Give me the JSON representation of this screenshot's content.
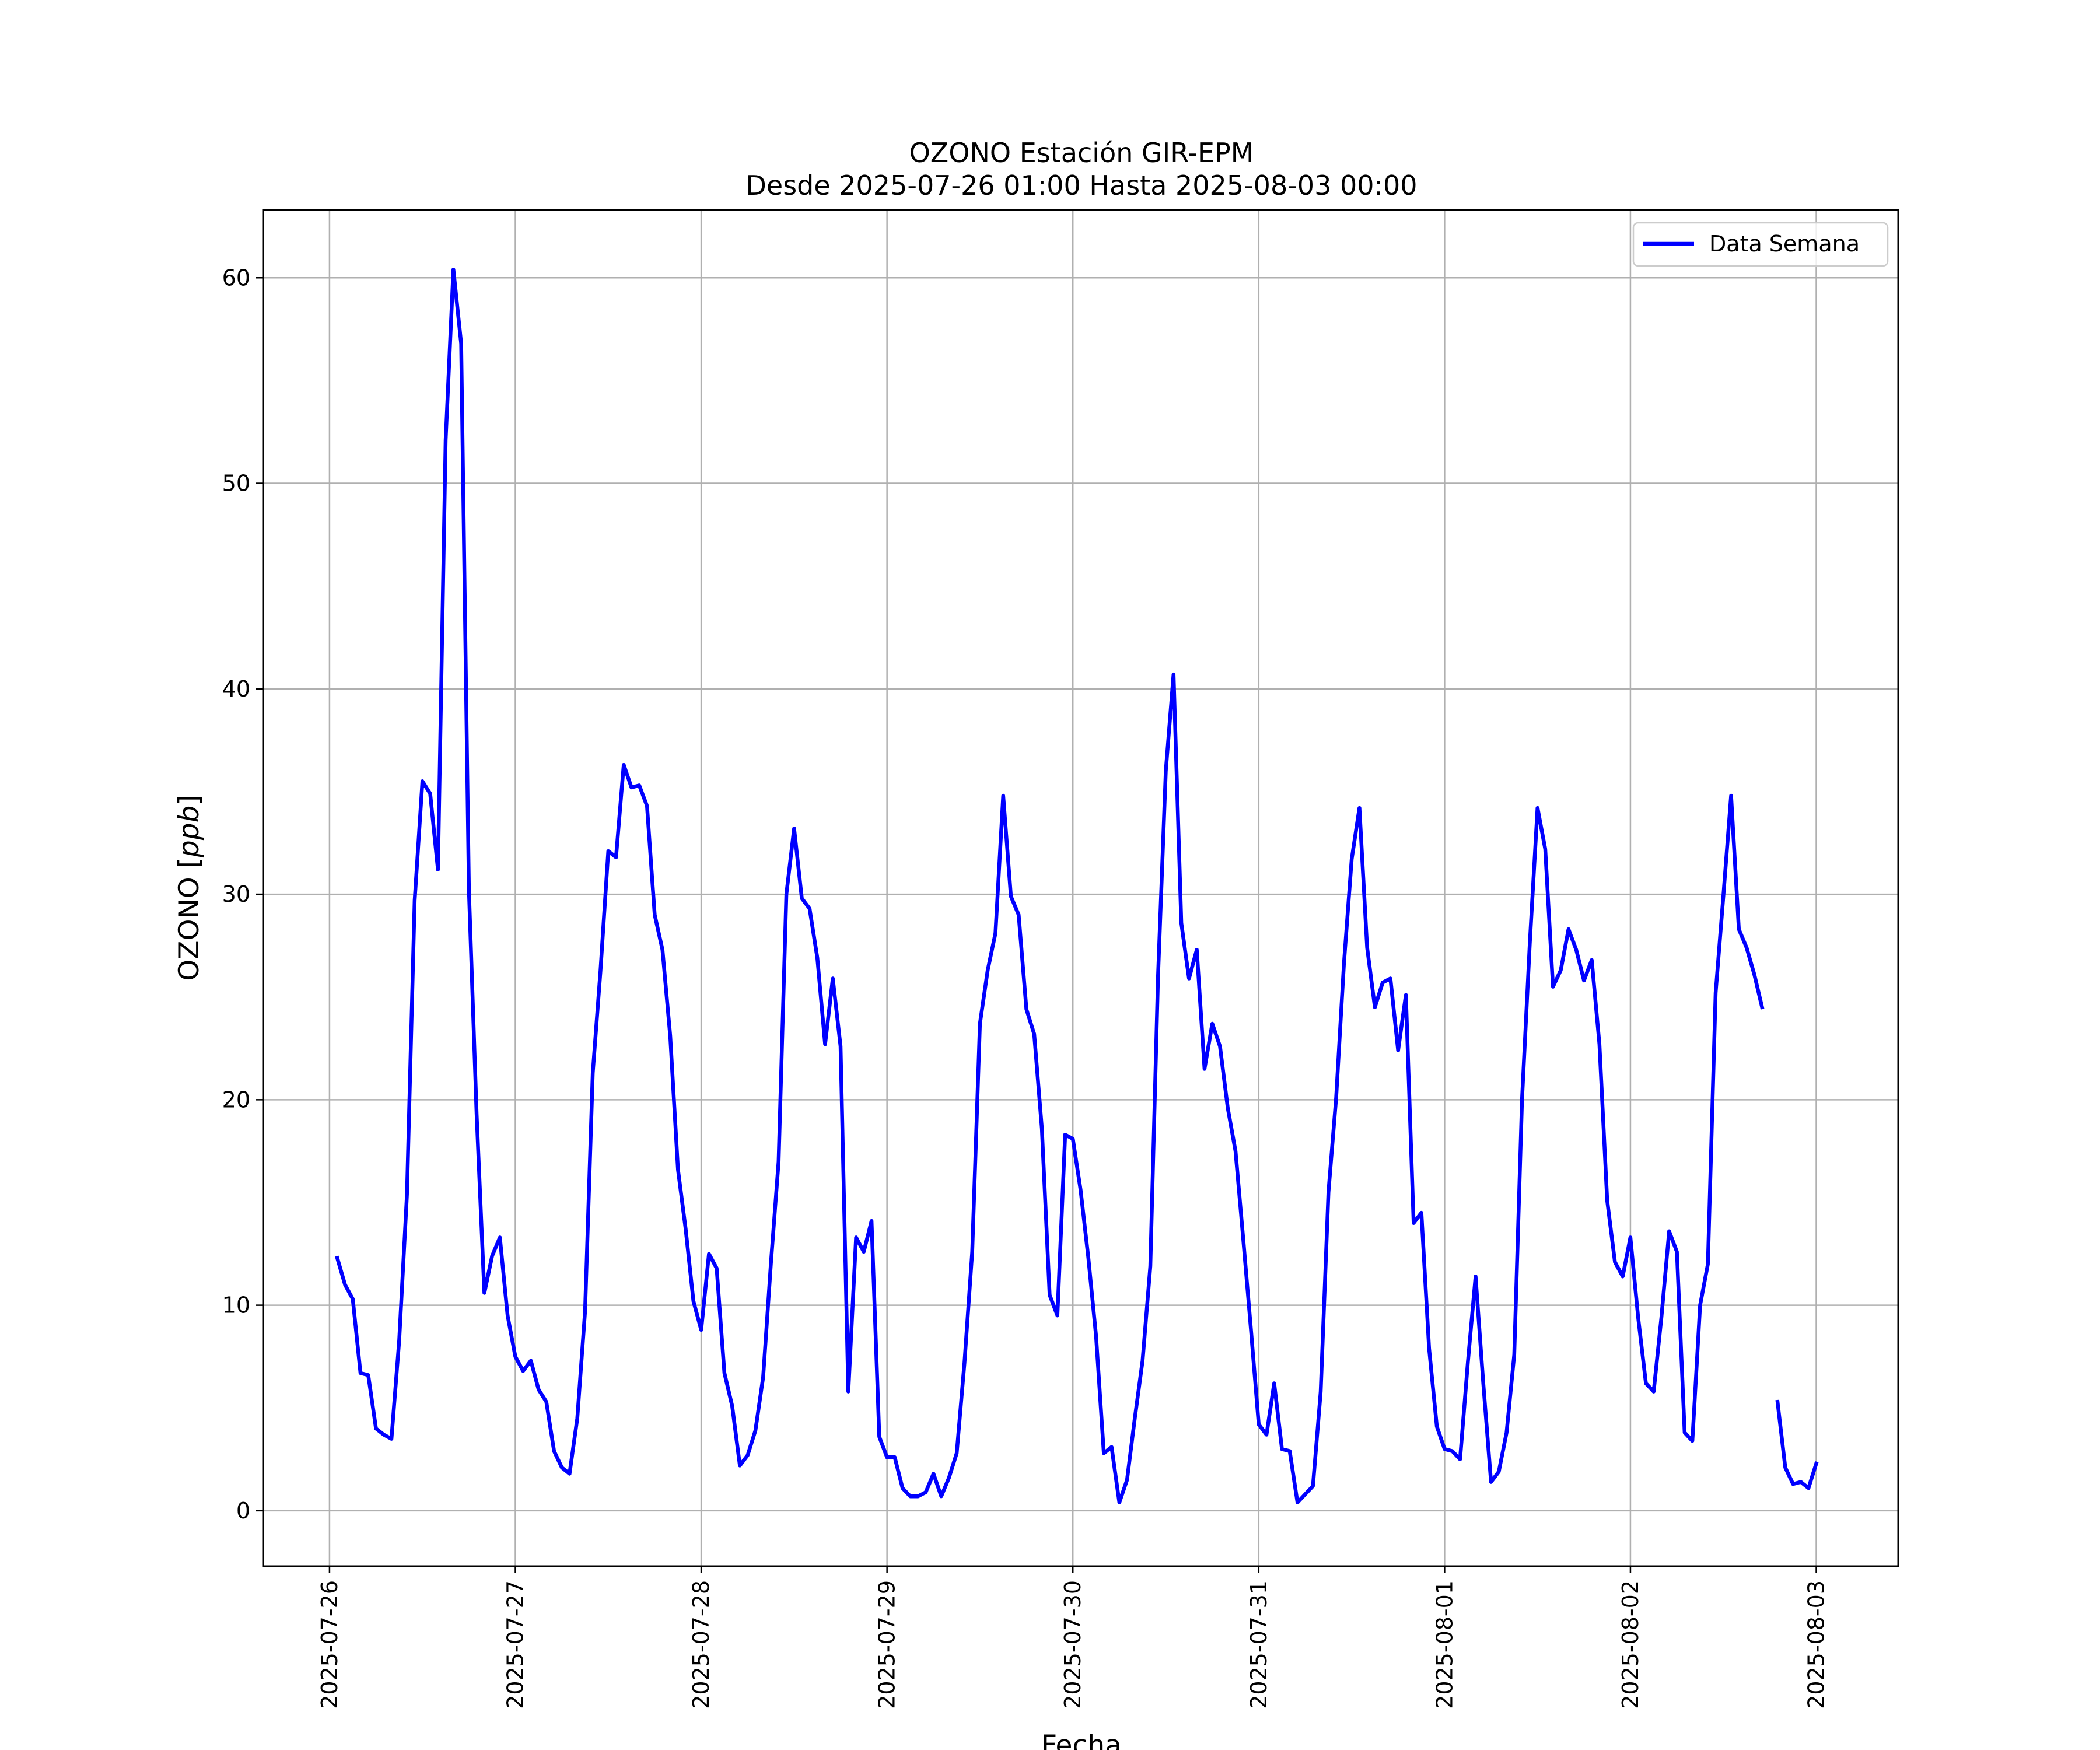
{
  "chart_data": {
    "type": "line",
    "title": "OZONO Estación GIR-EPM",
    "subtitle": "Desde 2025-07-26 01:00 Hasta 2025-08-03 00:00",
    "xlabel": "Fecha",
    "ylabel": "OZONO [ppb]",
    "ylabel_parts": {
      "prefix": "OZONO [",
      "unit": "ppb",
      "suffix": "]"
    },
    "xlim": [
      "2025-07-25 15:25",
      "2025-08-03 10:35"
    ],
    "ylim": [
      -2.7,
      63.3
    ],
    "x_ticks": [
      "2025-07-26",
      "2025-07-27",
      "2025-07-28",
      "2025-07-29",
      "2025-07-30",
      "2025-07-31",
      "2025-08-01",
      "2025-08-02",
      "2025-08-03"
    ],
    "y_ticks": [
      0,
      10,
      20,
      30,
      40,
      50,
      60
    ],
    "grid": true,
    "legend_position": "top-right",
    "line_color": "#0000ff",
    "series": [
      {
        "name": "Data Semana",
        "x": [
          "2025-07-26 01:00",
          "2025-07-26 02:00",
          "2025-07-26 03:00",
          "2025-07-26 04:00",
          "2025-07-26 05:00",
          "2025-07-26 06:00",
          "2025-07-26 07:00",
          "2025-07-26 08:00",
          "2025-07-26 09:00",
          "2025-07-26 10:00",
          "2025-07-26 11:00",
          "2025-07-26 12:00",
          "2025-07-26 13:00",
          "2025-07-26 14:00",
          "2025-07-26 15:00",
          "2025-07-26 16:00",
          "2025-07-26 17:00",
          "2025-07-26 18:00",
          "2025-07-26 19:00",
          "2025-07-26 20:00",
          "2025-07-26 21:00",
          "2025-07-26 22:00",
          "2025-07-26 23:00",
          "2025-07-27 00:00",
          "2025-07-27 01:00",
          "2025-07-27 02:00",
          "2025-07-27 03:00",
          "2025-07-27 04:00",
          "2025-07-27 05:00",
          "2025-07-27 06:00",
          "2025-07-27 07:00",
          "2025-07-27 08:00",
          "2025-07-27 09:00",
          "2025-07-27 10:00",
          "2025-07-27 11:00",
          "2025-07-27 12:00",
          "2025-07-27 13:00",
          "2025-07-27 14:00",
          "2025-07-27 15:00",
          "2025-07-27 16:00",
          "2025-07-27 17:00",
          "2025-07-27 18:00",
          "2025-07-27 19:00",
          "2025-07-27 20:00",
          "2025-07-27 21:00",
          "2025-07-27 22:00",
          "2025-07-27 23:00",
          "2025-07-28 00:00",
          "2025-07-28 01:00",
          "2025-07-28 02:00",
          "2025-07-28 03:00",
          "2025-07-28 04:00",
          "2025-07-28 05:00",
          "2025-07-28 06:00",
          "2025-07-28 07:00",
          "2025-07-28 08:00",
          "2025-07-28 09:00",
          "2025-07-28 10:00",
          "2025-07-28 11:00",
          "2025-07-28 12:00",
          "2025-07-28 13:00",
          "2025-07-28 14:00",
          "2025-07-28 15:00",
          "2025-07-28 16:00",
          "2025-07-28 17:00",
          "2025-07-28 18:00",
          "2025-07-28 19:00",
          "2025-07-28 20:00",
          "2025-07-28 21:00",
          "2025-07-28 22:00",
          "2025-07-28 23:00",
          "2025-07-29 00:00",
          "2025-07-29 01:00",
          "2025-07-29 02:00",
          "2025-07-29 03:00",
          "2025-07-29 04:00",
          "2025-07-29 05:00",
          "2025-07-29 06:00",
          "2025-07-29 07:00",
          "2025-07-29 08:00",
          "2025-07-29 09:00",
          "2025-07-29 10:00",
          "2025-07-29 11:00",
          "2025-07-29 12:00",
          "2025-07-29 13:00",
          "2025-07-29 14:00",
          "2025-07-29 15:00",
          "2025-07-29 16:00",
          "2025-07-29 17:00",
          "2025-07-29 18:00",
          "2025-07-29 19:00",
          "2025-07-29 20:00",
          "2025-07-29 21:00",
          "2025-07-29 22:00",
          "2025-07-29 23:00",
          "2025-07-30 00:00",
          "2025-07-30 01:00",
          "2025-07-30 02:00",
          "2025-07-30 03:00",
          "2025-07-30 04:00",
          "2025-07-30 05:00",
          "2025-07-30 06:00",
          "2025-07-30 07:00",
          "2025-07-30 08:00",
          "2025-07-30 09:00",
          "2025-07-30 10:00",
          "2025-07-30 11:00",
          "2025-07-30 12:00",
          "2025-07-30 13:00",
          "2025-07-30 14:00",
          "2025-07-30 15:00",
          "2025-07-30 16:00",
          "2025-07-30 17:00",
          "2025-07-30 18:00",
          "2025-07-30 19:00",
          "2025-07-30 20:00",
          "2025-07-30 21:00",
          "2025-07-30 22:00",
          "2025-07-30 23:00",
          "2025-07-31 00:00",
          "2025-07-31 01:00",
          "2025-07-31 02:00",
          "2025-07-31 03:00",
          "2025-07-31 04:00",
          "2025-07-31 05:00",
          "2025-07-31 06:00",
          "2025-07-31 07:00",
          "2025-07-31 08:00",
          "2025-07-31 09:00",
          "2025-07-31 10:00",
          "2025-07-31 11:00",
          "2025-07-31 12:00",
          "2025-07-31 13:00",
          "2025-07-31 14:00",
          "2025-07-31 15:00",
          "2025-07-31 16:00",
          "2025-07-31 17:00",
          "2025-07-31 18:00",
          "2025-07-31 19:00",
          "2025-07-31 20:00",
          "2025-07-31 21:00",
          "2025-07-31 22:00",
          "2025-07-31 23:00",
          "2025-08-01 00:00",
          "2025-08-01 01:00",
          "2025-08-01 02:00",
          "2025-08-01 03:00",
          "2025-08-01 04:00",
          "2025-08-01 05:00",
          "2025-08-01 06:00",
          "2025-08-01 07:00",
          "2025-08-01 08:00",
          "2025-08-01 09:00",
          "2025-08-01 10:00",
          "2025-08-01 11:00",
          "2025-08-01 12:00",
          "2025-08-01 13:00",
          "2025-08-01 14:00",
          "2025-08-01 15:00",
          "2025-08-01 16:00",
          "2025-08-01 17:00",
          "2025-08-01 18:00",
          "2025-08-01 19:00",
          "2025-08-01 20:00",
          "2025-08-01 21:00",
          "2025-08-01 22:00",
          "2025-08-01 23:00",
          "2025-08-02 00:00",
          "2025-08-02 01:00",
          "2025-08-02 02:00",
          "2025-08-02 03:00",
          "2025-08-02 04:00",
          "2025-08-02 05:00",
          "2025-08-02 06:00",
          "2025-08-02 07:00",
          "2025-08-02 08:00",
          "2025-08-02 09:00",
          "2025-08-02 10:00",
          "2025-08-02 11:00",
          "2025-08-02 12:00",
          "2025-08-02 13:00",
          "2025-08-02 14:00",
          "2025-08-02 15:00",
          "2025-08-02 16:00",
          "2025-08-02 17:00",
          "2025-08-02 18:00",
          "2025-08-02 19:00",
          "2025-08-02 20:00",
          "2025-08-02 21:00",
          "2025-08-02 22:00",
          "2025-08-02 23:00",
          "2025-08-03 00:00"
        ],
        "y": [
          12.3,
          11.0,
          10.3,
          6.7,
          6.6,
          4.0,
          3.7,
          3.5,
          8.3,
          15.4,
          29.7,
          35.5,
          34.9,
          31.2,
          52.1,
          60.4,
          56.8,
          30.2,
          19.3,
          10.6,
          12.4,
          13.3,
          9.5,
          7.5,
          6.8,
          7.3,
          5.9,
          5.3,
          2.9,
          2.1,
          1.8,
          4.5,
          9.7,
          21.3,
          26.3,
          32.1,
          31.8,
          36.3,
          35.2,
          35.3,
          34.3,
          29.0,
          27.3,
          23.1,
          16.6,
          13.7,
          10.2,
          8.8,
          12.5,
          11.8,
          6.7,
          5.1,
          2.2,
          2.7,
          3.9,
          6.5,
          12.0,
          17.0,
          30.0,
          33.2,
          29.8,
          29.3,
          26.9,
          22.7,
          25.9,
          22.6,
          5.8,
          13.3,
          12.6,
          14.1,
          3.6,
          2.6,
          2.6,
          1.1,
          0.7,
          0.7,
          0.9,
          1.8,
          0.7,
          1.6,
          2.8,
          7.2,
          12.6,
          23.7,
          26.3,
          28.1,
          34.8,
          29.9,
          29.0,
          24.4,
          23.2,
          18.6,
          10.5,
          9.5,
          18.3,
          18.1,
          15.6,
          12.3,
          8.5,
          2.8,
          3.1,
          0.4,
          1.5,
          4.5,
          7.3,
          11.9,
          26.0,
          36.0,
          40.7,
          28.6,
          25.9,
          27.3,
          21.5,
          23.7,
          22.6,
          19.6,
          17.5,
          13.2,
          8.8,
          4.2,
          3.7,
          6.2,
          3.0,
          2.9,
          0.4,
          0.8,
          1.2,
          5.8,
          15.5,
          20.1,
          26.6,
          31.7,
          34.2,
          27.4,
          24.5,
          25.7,
          25.9,
          22.4,
          25.1,
          14.0,
          14.5,
          7.9,
          4.1,
          3.0,
          2.9,
          2.5,
          7.2,
          11.4,
          6.2,
          1.4,
          1.9,
          3.8,
          7.6,
          20.0,
          27.6,
          34.2,
          32.2,
          25.5,
          26.3,
          28.3,
          27.3,
          25.8,
          26.8,
          22.7,
          15.1,
          12.1,
          11.4,
          13.3,
          9.4,
          6.2,
          5.8,
          9.4,
          13.6,
          12.6,
          3.8,
          3.4,
          10.0,
          12.0,
          25.2,
          29.9,
          34.8,
          28.3,
          27.4,
          26.1,
          24.5,
          null,
          5.3,
          2.1,
          1.3,
          1.4,
          1.1,
          2.3
        ]
      }
    ]
  }
}
